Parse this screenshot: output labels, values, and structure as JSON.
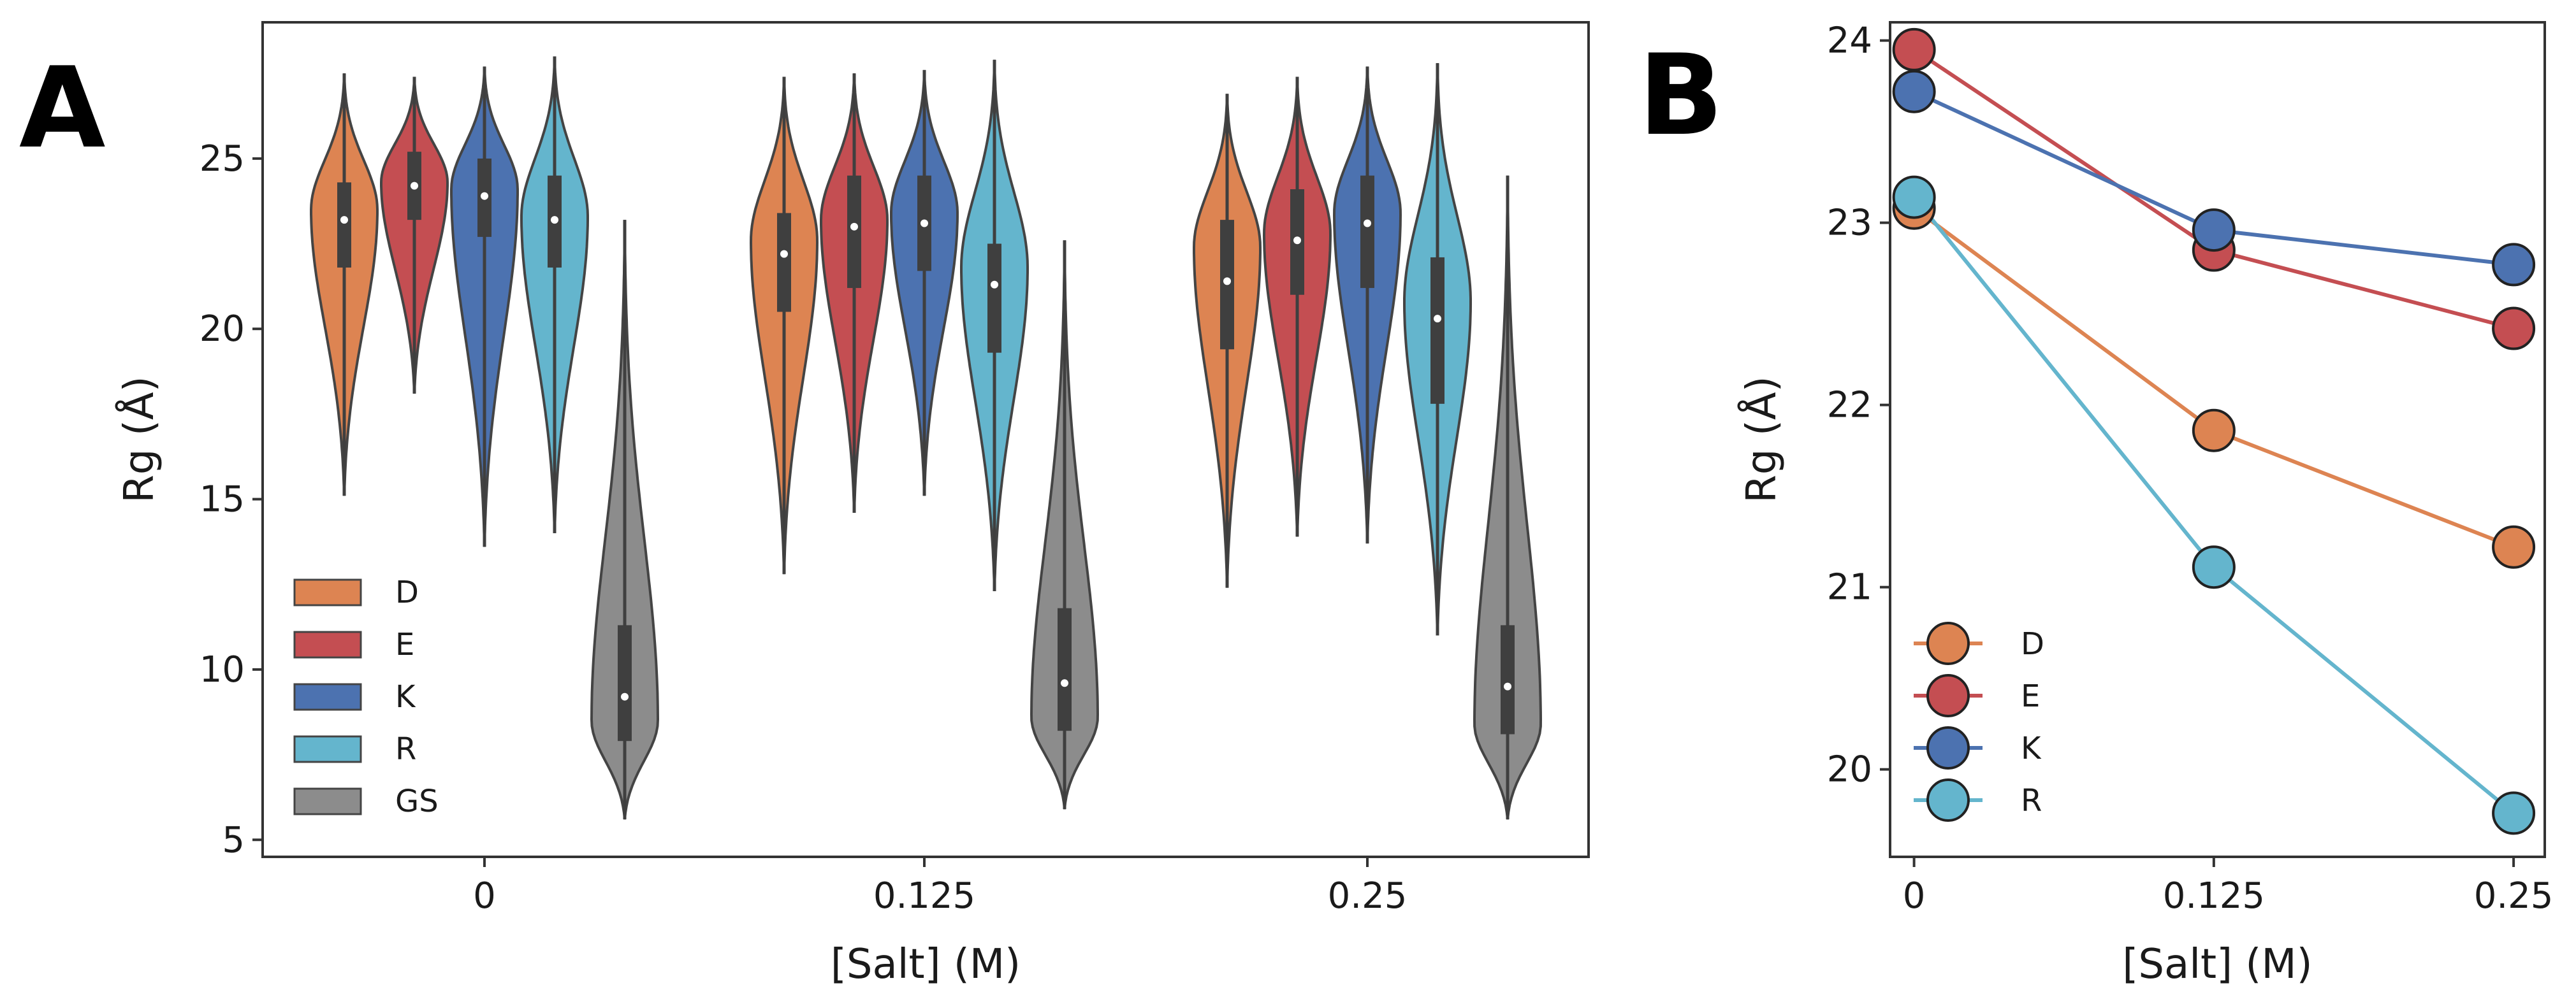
{
  "panels": [
    {
      "letter": "A"
    },
    {
      "letter": "B"
    }
  ],
  "colors": {
    "D": "#dd8452",
    "E": "#c44e52",
    "K": "#4c72b0",
    "R": "#64b5cd",
    "GS": "#8c8c8c"
  },
  "chart_data": [
    {
      "type": "violin",
      "title": "",
      "xlabel": "[Salt] (M)",
      "ylabel": "Rg (Å)",
      "categories": [
        "0",
        "0.125",
        "0.25"
      ],
      "ylim": [
        4.5,
        29
      ],
      "yticks": [
        5,
        10,
        15,
        20,
        25
      ],
      "legend": {
        "position": "lower-left",
        "entries": [
          "D",
          "E",
          "K",
          "R",
          "GS"
        ]
      },
      "series": [
        {
          "name": "D",
          "min": [
            15.1,
            12.8,
            12.4
          ],
          "q1": [
            21.8,
            20.5,
            19.4
          ],
          "median": [
            23.2,
            22.2,
            21.4
          ],
          "q3": [
            24.3,
            23.4,
            23.2
          ],
          "max": [
            27.5,
            27.4,
            26.9
          ],
          "mode": [
            23.5,
            22.6,
            22.4
          ]
        },
        {
          "name": "E",
          "min": [
            18.1,
            14.6,
            13.9
          ],
          "q1": [
            23.2,
            21.2,
            21.0
          ],
          "median": [
            24.2,
            23.0,
            22.6
          ],
          "q3": [
            25.2,
            24.5,
            24.1
          ],
          "max": [
            27.4,
            27.5,
            27.4
          ],
          "mode": [
            24.3,
            23.2,
            22.8
          ]
        },
        {
          "name": "K",
          "min": [
            13.6,
            15.1,
            13.7
          ],
          "q1": [
            22.7,
            21.7,
            21.2
          ],
          "median": [
            23.9,
            23.1,
            23.1
          ],
          "q3": [
            25.0,
            24.5,
            24.5
          ],
          "max": [
            27.7,
            27.6,
            27.7
          ],
          "mode": [
            24.1,
            23.4,
            23.4
          ]
        },
        {
          "name": "R",
          "min": [
            14.0,
            12.3,
            11.0
          ],
          "q1": [
            21.8,
            19.3,
            17.8
          ],
          "median": [
            23.2,
            21.3,
            20.3
          ],
          "q3": [
            24.5,
            22.5,
            22.1
          ],
          "max": [
            28.0,
            27.9,
            27.8
          ],
          "mode": [
            23.3,
            21.8,
            20.8
          ]
        },
        {
          "name": "GS",
          "min": [
            5.6,
            5.9,
            5.6
          ],
          "q1": [
            7.9,
            8.2,
            8.1
          ],
          "median": [
            9.2,
            9.6,
            9.5
          ],
          "q3": [
            11.3,
            11.8,
            11.3
          ],
          "max": [
            23.2,
            22.6,
            24.5
          ],
          "mode": [
            8.5,
            8.6,
            8.4
          ]
        }
      ]
    },
    {
      "type": "line",
      "title": "",
      "xlabel": "[Salt] (M)",
      "ylabel": "Rg (Å)",
      "x": [
        0,
        0.125,
        0.25
      ],
      "xticklabels": [
        "0",
        "0.125",
        "0.25"
      ],
      "xlim": [
        -0.01,
        0.263
      ],
      "ylim": [
        19.52,
        24.1
      ],
      "yticks": [
        20,
        21,
        22,
        23,
        24
      ],
      "legend": {
        "position": "lower-left",
        "entries": [
          "D",
          "E",
          "K",
          "R"
        ]
      },
      "series": [
        {
          "name": "D",
          "values": [
            23.08,
            21.86,
            21.22
          ]
        },
        {
          "name": "E",
          "values": [
            23.95,
            22.85,
            22.42
          ]
        },
        {
          "name": "K",
          "values": [
            23.72,
            22.96,
            22.77
          ]
        },
        {
          "name": "R",
          "values": [
            23.14,
            21.11,
            19.76
          ]
        }
      ]
    }
  ]
}
